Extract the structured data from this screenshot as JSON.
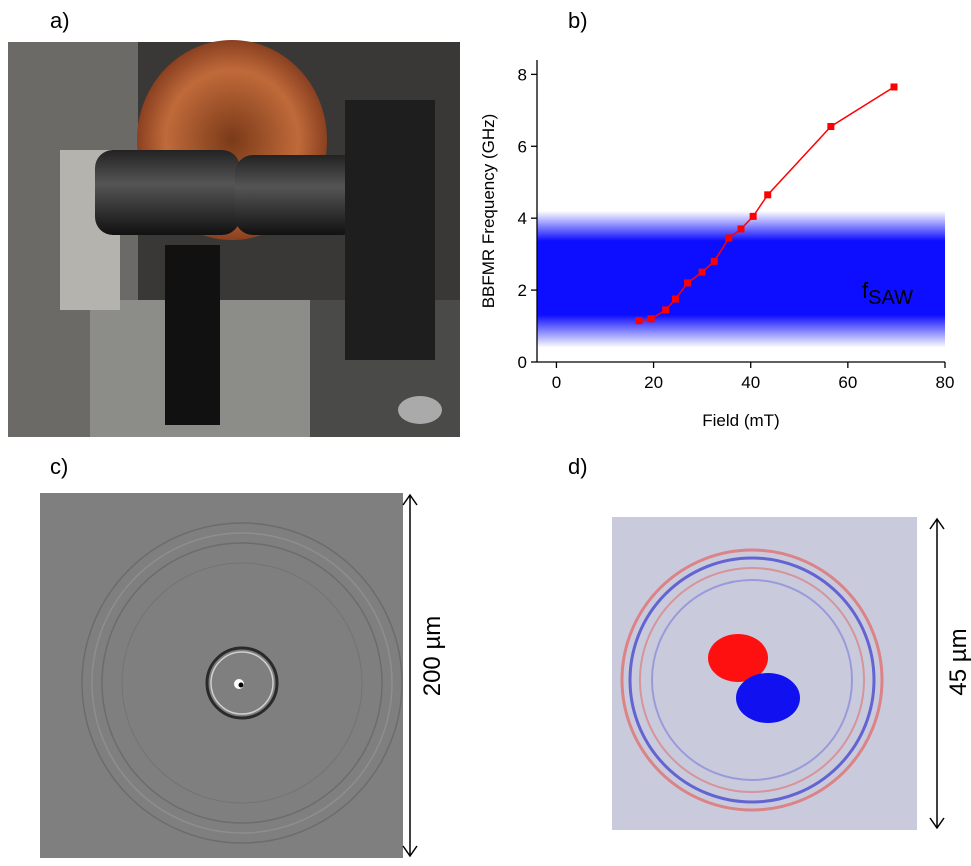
{
  "panel_labels": [
    "a)",
    "b)",
    "c)",
    "d)"
  ],
  "chart_data": {
    "type": "line",
    "xlabel": "Field (mT)",
    "ylabel": "BBFMR Frequency (GHz)",
    "x": [
      17,
      19.5,
      22.5,
      24.5,
      27,
      30,
      32.5,
      35.5,
      38,
      40.5,
      43.5,
      56.5,
      69.5
    ],
    "values": [
      1.15,
      1.2,
      1.45,
      1.75,
      2.2,
      2.5,
      2.8,
      3.45,
      3.7,
      4.05,
      4.65,
      6.55,
      7.65
    ],
    "color": "#ff0000",
    "xlim": [
      -4,
      80
    ],
    "xticks": [
      0,
      20,
      40,
      60,
      80
    ],
    "ylim": [
      0,
      8.4
    ],
    "yticks": [
      0,
      2,
      4,
      6,
      8
    ],
    "shaded_band": {
      "range": [
        0.4,
        4.2
      ],
      "color": "#0000ff",
      "label": "f",
      "label_subscript": "SAW"
    }
  },
  "scale_bars": [
    "200 µm",
    "45 µm"
  ]
}
